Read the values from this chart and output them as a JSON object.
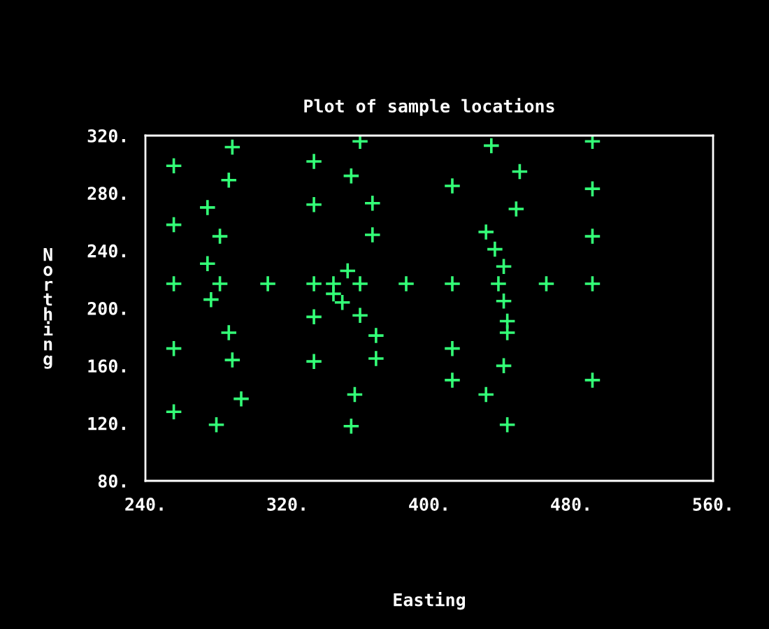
{
  "chart_data": {
    "type": "scatter",
    "title": "Plot of sample locations",
    "xlabel": "Easting",
    "ylabel": "N\no\nr\nt\nh\ni\nn\ng",
    "xlim": [
      240,
      560
    ],
    "ylim": [
      80,
      320
    ],
    "xticks": [
      {
        "value": 240,
        "label": "240."
      },
      {
        "value": 320,
        "label": "320."
      },
      {
        "value": 400,
        "label": "400."
      },
      {
        "value": 480,
        "label": "480."
      },
      {
        "value": 560,
        "label": "560."
      }
    ],
    "yticks": [
      {
        "value": 80,
        "label": "80."
      },
      {
        "value": 120,
        "label": "120."
      },
      {
        "value": 160,
        "label": "160."
      },
      {
        "value": 200,
        "label": "200."
      },
      {
        "value": 240,
        "label": "240."
      },
      {
        "value": 280,
        "label": "280."
      },
      {
        "value": 320,
        "label": "320."
      }
    ],
    "marker": "cross",
    "grid": false,
    "legend": false,
    "series": [
      {
        "color": "#33ff77",
        "x": [
          256,
          289,
          287,
          275,
          256,
          282,
          275,
          256,
          282,
          309,
          335,
          346,
          361,
          387,
          277,
          346,
          351,
          335,
          361,
          335,
          335,
          356,
          361,
          368,
          368,
          354,
          435,
          492,
          451,
          413,
          492,
          449,
          432,
          492,
          437,
          442,
          413,
          439,
          466,
          492,
          442,
          370,
          287,
          256,
          289,
          335,
          370,
          294,
          358,
          256,
          280,
          356,
          444,
          444,
          413,
          442,
          413,
          492,
          432,
          444
        ],
        "values": [
          299,
          312,
          289,
          270,
          258,
          250,
          231,
          217,
          217,
          217,
          217,
          217,
          217,
          217,
          206,
          210,
          204,
          194,
          195,
          302,
          272,
          292,
          316,
          273,
          251,
          226,
          313,
          316,
          295,
          285,
          283,
          269,
          253,
          250,
          241,
          229,
          217,
          217,
          217,
          217,
          205,
          181,
          183,
          172,
          164,
          163,
          165,
          137,
          140,
          128,
          119,
          118,
          191,
          183,
          172,
          160,
          150,
          150,
          140,
          119
        ]
      }
    ]
  }
}
